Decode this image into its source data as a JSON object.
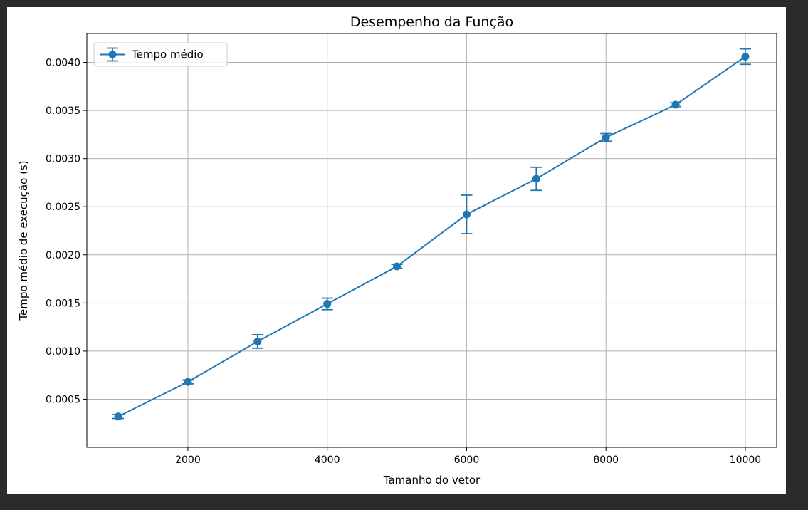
{
  "chart_data": {
    "type": "line",
    "title": "Desempenho da Função",
    "xlabel": "Tamanho do vetor",
    "ylabel": "Tempo médio de execução (s)",
    "xlim": [
      550,
      10450
    ],
    "ylim": [
      0.0,
      0.0043
    ],
    "xticks": [
      2000,
      4000,
      6000,
      8000,
      10000
    ],
    "xtick_labels": [
      "2000",
      "4000",
      "6000",
      "8000",
      "10000"
    ],
    "yticks": [
      0.0005,
      0.001,
      0.0015,
      0.002,
      0.0025,
      0.003,
      0.0035,
      0.004
    ],
    "ytick_labels": [
      "0.0005",
      "0.0010",
      "0.0015",
      "0.0020",
      "0.0025",
      "0.0030",
      "0.0035",
      "0.0040"
    ],
    "grid": true,
    "legend_position": "top-left",
    "series": [
      {
        "name": "Tempo médio",
        "color": "#1f77b4",
        "marker": "circle",
        "error_bars": true,
        "x": [
          1000,
          2000,
          3000,
          4000,
          5000,
          6000,
          7000,
          8000,
          9000,
          10000
        ],
        "y": [
          0.00032,
          0.00068,
          0.0011,
          0.00149,
          0.00188,
          0.00242,
          0.00279,
          0.00322,
          0.00356,
          0.00406
        ],
        "yerr": [
          2e-05,
          2e-05,
          7e-05,
          6e-05,
          2e-05,
          0.0002,
          0.00012,
          4e-05,
          2e-05,
          8e-05
        ]
      }
    ]
  }
}
